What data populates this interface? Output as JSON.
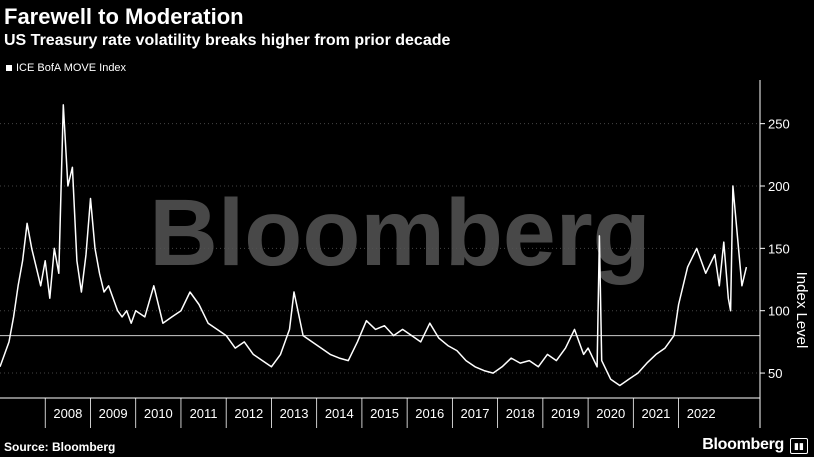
{
  "title": "Farewell to Moderation",
  "subtitle": "US Treasury rate volatility breaks higher from prior decade",
  "source": "Source: Bloomberg",
  "brand": "Bloomberg",
  "watermark": "Bloomberg",
  "colors": {
    "background": "#000000",
    "line": "#ffffff",
    "grid": "#444444",
    "reference": "#cccccc",
    "watermark": "#555555"
  },
  "chart_data": {
    "type": "line",
    "title": "Farewell to Moderation",
    "subtitle": "US Treasury rate volatility breaks higher from prior decade",
    "ylabel": "Index Level",
    "xlabel": "",
    "ylim": [
      30,
      285
    ],
    "xlim": [
      2007.0,
      2023.8
    ],
    "yticks": [
      50,
      100,
      150,
      200,
      250
    ],
    "xticks": [
      "2008",
      "2009",
      "2010",
      "2011",
      "2012",
      "2013",
      "2014",
      "2015",
      "2016",
      "2017",
      "2018",
      "2019",
      "2020",
      "2021",
      "2022"
    ],
    "reference_line": 80,
    "grid": "horizontal dotted",
    "legend": "top-left",
    "series": [
      {
        "name": "ICE BofA MOVE Index",
        "x": [
          2007.0,
          2007.1,
          2007.2,
          2007.3,
          2007.4,
          2007.5,
          2007.6,
          2007.7,
          2007.8,
          2007.9,
          2008.0,
          2008.1,
          2008.2,
          2008.3,
          2008.4,
          2008.5,
          2008.6,
          2008.7,
          2008.8,
          2008.9,
          2009.0,
          2009.1,
          2009.2,
          2009.3,
          2009.4,
          2009.5,
          2009.6,
          2009.7,
          2009.8,
          2009.9,
          2010.0,
          2010.2,
          2010.4,
          2010.6,
          2010.8,
          2011.0,
          2011.2,
          2011.4,
          2011.6,
          2011.8,
          2012.0,
          2012.2,
          2012.4,
          2012.6,
          2012.8,
          2013.0,
          2013.2,
          2013.4,
          2013.5,
          2013.7,
          2013.9,
          2014.1,
          2014.3,
          2014.5,
          2014.7,
          2014.9,
          2015.1,
          2015.3,
          2015.5,
          2015.7,
          2015.9,
          2016.1,
          2016.3,
          2016.5,
          2016.7,
          2016.9,
          2017.1,
          2017.3,
          2017.5,
          2017.7,
          2017.9,
          2018.1,
          2018.3,
          2018.5,
          2018.7,
          2018.9,
          2019.1,
          2019.3,
          2019.5,
          2019.7,
          2019.9,
          2020.0,
          2020.2,
          2020.25,
          2020.3,
          2020.5,
          2020.7,
          2020.9,
          2021.1,
          2021.3,
          2021.5,
          2021.7,
          2021.9,
          2022.0,
          2022.2,
          2022.4,
          2022.6,
          2022.8,
          2022.9,
          2023.0,
          2023.1,
          2023.15,
          2023.2,
          2023.3,
          2023.4,
          2023.5
        ],
        "y": [
          55,
          65,
          75,
          95,
          120,
          140,
          170,
          150,
          135,
          120,
          140,
          110,
          150,
          130,
          265,
          200,
          215,
          140,
          115,
          145,
          190,
          150,
          130,
          115,
          120,
          110,
          100,
          95,
          100,
          90,
          100,
          95,
          120,
          90,
          95,
          100,
          115,
          105,
          90,
          85,
          80,
          70,
          75,
          65,
          60,
          55,
          65,
          85,
          115,
          80,
          75,
          70,
          65,
          62,
          60,
          75,
          92,
          85,
          88,
          80,
          85,
          80,
          75,
          90,
          78,
          72,
          68,
          60,
          55,
          52,
          50,
          55,
          62,
          58,
          60,
          55,
          65,
          60,
          70,
          85,
          65,
          70,
          55,
          160,
          60,
          45,
          40,
          45,
          50,
          58,
          65,
          70,
          80,
          105,
          135,
          150,
          130,
          145,
          120,
          155,
          110,
          100,
          200,
          160,
          120,
          135
        ]
      }
    ]
  }
}
